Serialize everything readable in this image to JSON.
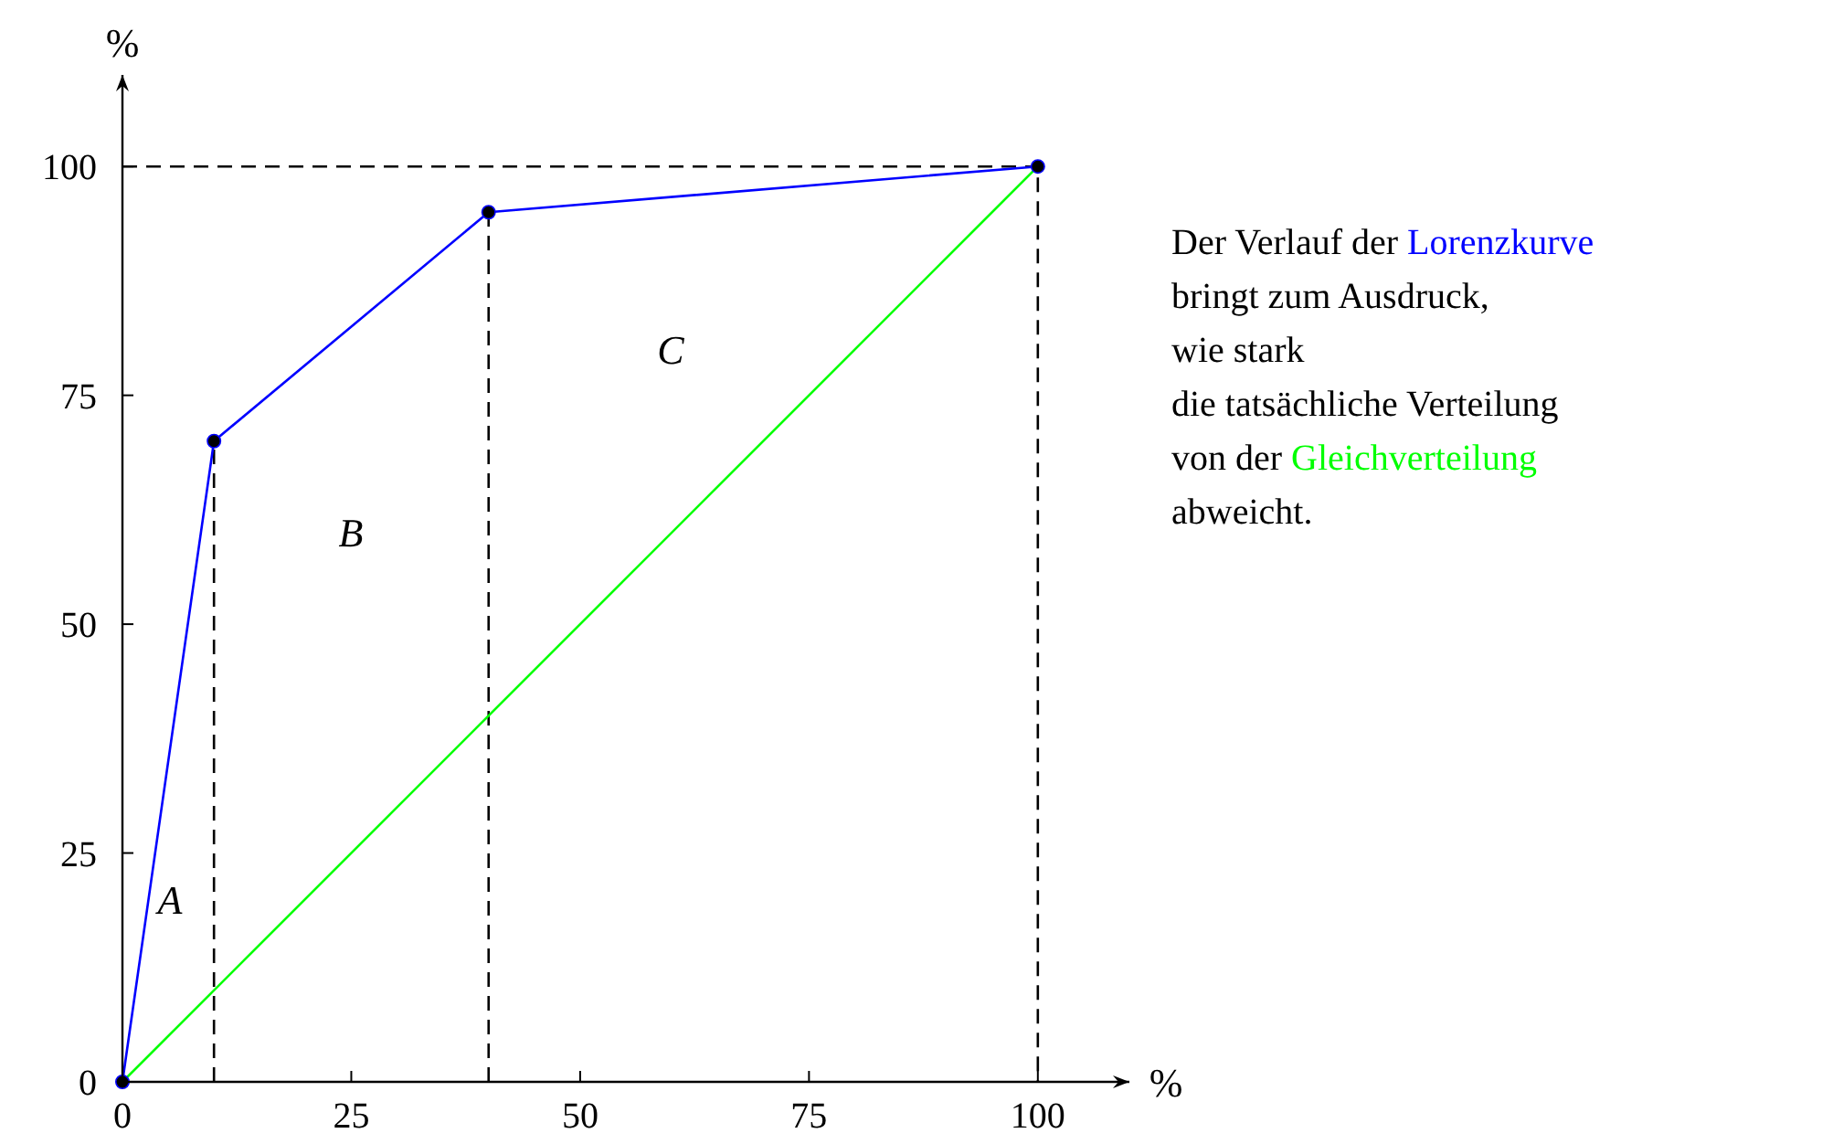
{
  "chart_data": {
    "type": "line",
    "xlabel": "%",
    "ylabel": "%",
    "xlim": [
      0,
      110
    ],
    "ylim": [
      0,
      110
    ],
    "xticks": [
      0,
      25,
      50,
      75,
      100
    ],
    "yticks": [
      0,
      25,
      50,
      75,
      100
    ],
    "grid": false,
    "series": [
      {
        "name": "Lorenzkurve",
        "color": "#0000ff",
        "x": [
          0,
          10,
          40,
          100
        ],
        "values": [
          0,
          70,
          95,
          100
        ],
        "marker": "circle",
        "line_style": "solid"
      },
      {
        "name": "Gleichverteilung",
        "color": "#00ff00",
        "x": [
          0,
          100
        ],
        "values": [
          0,
          100
        ],
        "marker": "none",
        "line_style": "solid"
      },
      {
        "color": "#000000",
        "x": [
          10,
          10
        ],
        "values": [
          0,
          70
        ],
        "marker": "none",
        "line_style": "dashed"
      },
      {
        "color": "#000000",
        "x": [
          40,
          40
        ],
        "values": [
          0,
          95
        ],
        "marker": "none",
        "line_style": "dashed"
      },
      {
        "color": "#000000",
        "x": [
          0,
          100,
          100
        ],
        "values": [
          100,
          100,
          0
        ],
        "marker": "none",
        "line_style": "dashed"
      }
    ],
    "annotations": [
      "Der Verlauf der",
      "bringt zum Ausdruck,",
      "wie stark",
      "die tatsächliche Verteilung",
      "von der",
      "abweicht.",
      "A",
      "B",
      "C"
    ]
  }
}
